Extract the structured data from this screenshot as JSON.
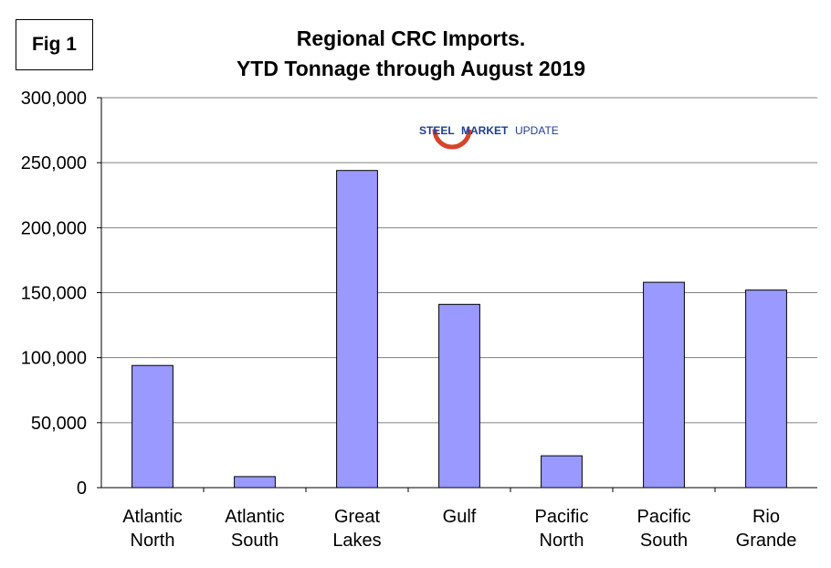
{
  "fig_label": "Fig 1",
  "logo": {
    "word1": "STEEL",
    "word2": "MARKET",
    "word3": "UPDATE"
  },
  "colors": {
    "bar_fill": "#9999FF",
    "bar_stroke": "#000000",
    "grid": "#808080",
    "logo_red": "#d6452a",
    "logo_blue": "#1f3f8f"
  },
  "chart_data": {
    "type": "bar",
    "title": "Regional CRC Imports.",
    "subtitle": "YTD Tonnage through August 2019",
    "xlabel": "",
    "ylabel": "",
    "ylim": [
      0,
      300000
    ],
    "yticks": [
      0,
      50000,
      100000,
      150000,
      200000,
      250000,
      300000
    ],
    "ytick_labels": [
      "0",
      "50,000",
      "100,000",
      "150,000",
      "200,000",
      "250,000",
      "300,000"
    ],
    "categories": [
      [
        "Atlantic",
        "North"
      ],
      [
        "Atlantic",
        "South"
      ],
      [
        "Great",
        "Lakes"
      ],
      [
        "Gulf"
      ],
      [
        "Pacific",
        "North"
      ],
      [
        "Pacific",
        "South"
      ],
      [
        "Rio",
        "Grande"
      ]
    ],
    "values": [
      94000,
      8500,
      244000,
      141000,
      24500,
      158000,
      152000
    ],
    "grid": true,
    "legend": "none"
  }
}
